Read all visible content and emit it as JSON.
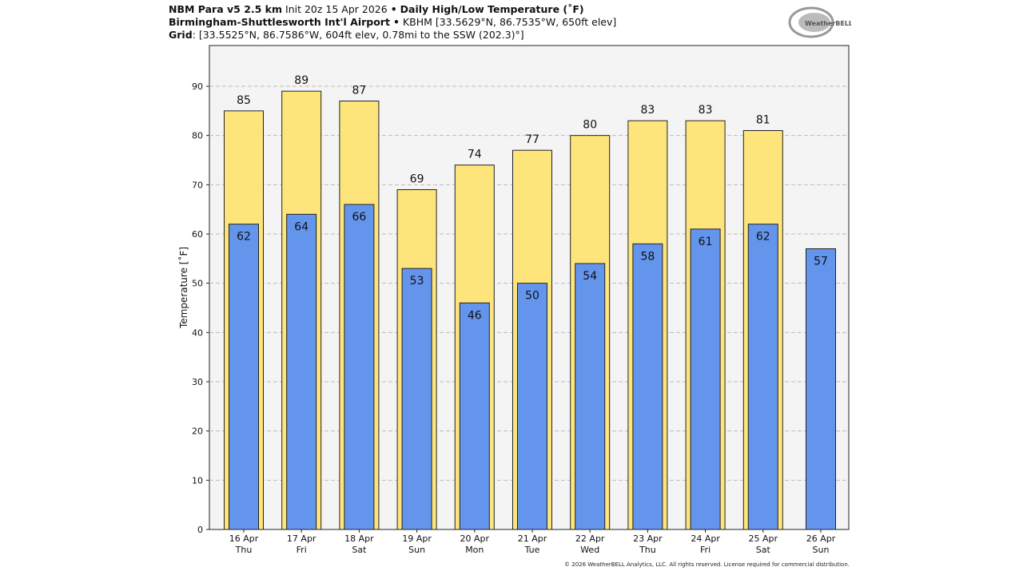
{
  "header": {
    "model": "NBM Para v5 2.5 km",
    "init": "Init 20z 15 Apr 2026",
    "sep": "•",
    "product": "Daily High/Low Temperature (˚F)",
    "station_name": "Birmingham-Shuttlesworth Int'l Airport",
    "station_info": "KBHM [33.5629°N, 86.7535°W, 650ft elev]",
    "grid_label": "Grid",
    "grid_info": ": [33.5525°N, 86.7586°W, 604ft elev, 0.78mi to the SSW (202.3)°]"
  },
  "logo_text": "WeatherBELL",
  "footer": "© 2026 WeatherBELL Analytics, LLC. All rights reserved. License required for commercial distribution.",
  "chart_data": {
    "type": "bar",
    "ylabel": "Temperature [˚F]",
    "ylim": [
      0,
      98
    ],
    "yticks": [
      0,
      10,
      20,
      30,
      40,
      50,
      60,
      70,
      80,
      90
    ],
    "grid": true,
    "categories": [
      [
        "16 Apr",
        "Thu"
      ],
      [
        "17 Apr",
        "Fri"
      ],
      [
        "18 Apr",
        "Sat"
      ],
      [
        "19 Apr",
        "Sun"
      ],
      [
        "20 Apr",
        "Mon"
      ],
      [
        "21 Apr",
        "Tue"
      ],
      [
        "22 Apr",
        "Wed"
      ],
      [
        "23 Apr",
        "Thu"
      ],
      [
        "24 Apr",
        "Fri"
      ],
      [
        "25 Apr",
        "Sat"
      ],
      [
        "26 Apr",
        "Sun"
      ]
    ],
    "series": [
      {
        "values": [
          85,
          89,
          87,
          69,
          74,
          77,
          80,
          83,
          83,
          81,
          null
        ],
        "color": "#fde57c"
      },
      {
        "values": [
          62,
          64,
          66,
          53,
          46,
          50,
          54,
          58,
          61,
          62,
          57
        ],
        "color": "#6495ed"
      }
    ]
  }
}
